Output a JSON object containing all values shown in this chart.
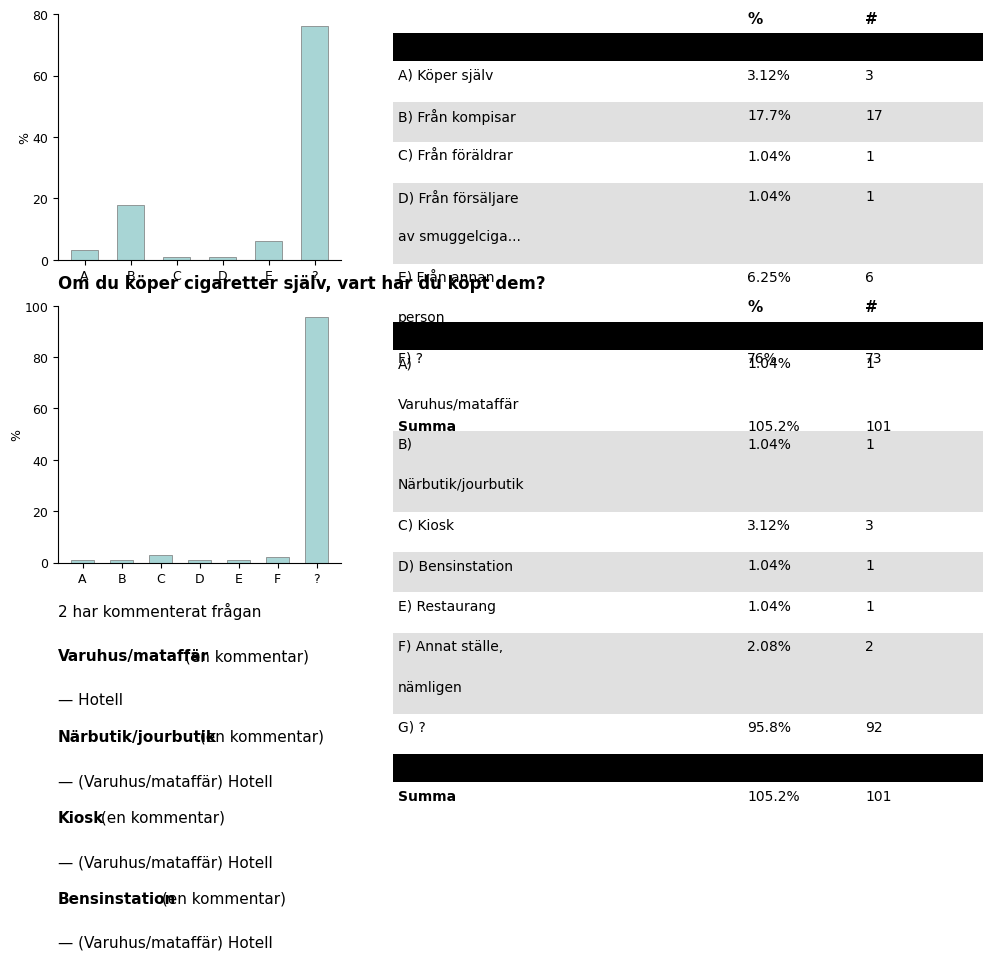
{
  "chart1": {
    "categories": [
      "A",
      "B",
      "C",
      "D",
      "E",
      "?"
    ],
    "values": [
      3.12,
      17.7,
      1.04,
      1.04,
      6.25,
      76.0
    ],
    "bar_color": "#a8d5d5",
    "ylabel": "%",
    "ylim": [
      0,
      80
    ],
    "yticks": [
      0,
      20,
      40,
      60,
      80
    ]
  },
  "table1": {
    "header": [
      "%",
      "#"
    ],
    "rows": [
      [
        "A) Köper själv",
        "3.12%",
        "3"
      ],
      [
        "B) Från kompisar",
        "17.7%",
        "17"
      ],
      [
        "C) Från föräldrar",
        "1.04%",
        "1"
      ],
      [
        "D) Från försäljare\nav smuggelciga...",
        "1.04%",
        "1"
      ],
      [
        "E) Från annan\nperson",
        "6.25%",
        "6"
      ],
      [
        "F) ?",
        "76%",
        "73"
      ]
    ],
    "summa": [
      "Summa",
      "105.2%",
      "101"
    ]
  },
  "question2": "Om du köper cigaretter själv, vart har du köpt dem?",
  "chart2": {
    "categories": [
      "A",
      "B",
      "C",
      "D",
      "E",
      "F",
      "?"
    ],
    "values": [
      1.04,
      1.04,
      3.12,
      1.04,
      1.04,
      2.08,
      95.8
    ],
    "bar_color": "#a8d5d5",
    "ylabel": "%",
    "ylim": [
      0,
      100
    ],
    "yticks": [
      0,
      20,
      40,
      60,
      80,
      100
    ]
  },
  "table2": {
    "header": [
      "%",
      "#"
    ],
    "rows": [
      [
        "A)\nVaruhus/mataffär",
        "1.04%",
        "1"
      ],
      [
        "B)\nNärbutik/jourbutik",
        "1.04%",
        "1"
      ],
      [
        "C) Kiosk",
        "3.12%",
        "3"
      ],
      [
        "D) Bensinstation",
        "1.04%",
        "1"
      ],
      [
        "E) Restaurang",
        "1.04%",
        "1"
      ],
      [
        "F) Annat ställe,\nnämligen",
        "2.08%",
        "2"
      ],
      [
        "G) ?",
        "95.8%",
        "92"
      ]
    ],
    "summa": [
      "Summa",
      "105.2%",
      "101"
    ]
  },
  "footer": [
    {
      "line1_bold": "",
      "line1_normal": "2 har kommenterat frågan",
      "line2": ""
    },
    {
      "line1_bold": "Varuhus/mataffär",
      "line1_normal": " (en kommentar)",
      "line2": "— Hotell"
    },
    {
      "line1_bold": "Närbutik/jourbutik",
      "line1_normal": " (en kommentar)",
      "line2": "— (Varuhus/mataffär) Hotell"
    },
    {
      "line1_bold": "Kiosk",
      "line1_normal": " (en kommentar)",
      "line2": "— (Varuhus/mataffär) Hotell"
    },
    {
      "line1_bold": "Bensinstation",
      "line1_normal": " (en kommentar)",
      "line2": "— (Varuhus/mataffär) Hotell"
    }
  ],
  "bg_color": "#ffffff",
  "row_bg_even": "#ffffff",
  "row_bg_odd": "#e0e0e0",
  "header_bar_color": "#000000",
  "summa_bar_color": "#000000"
}
